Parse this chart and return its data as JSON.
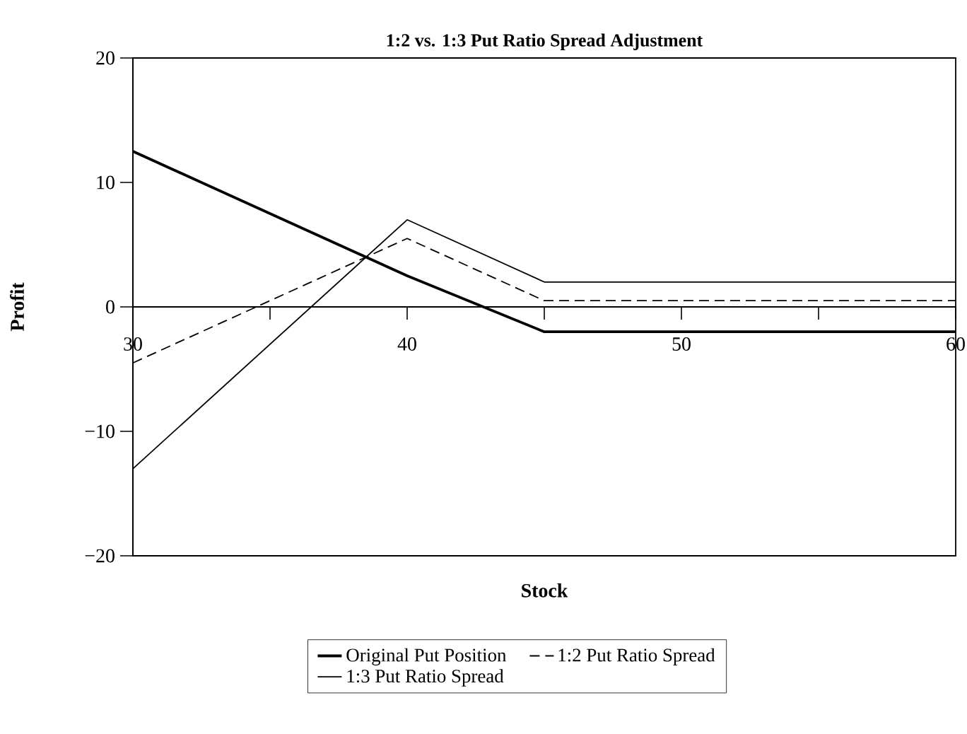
{
  "chart_data": {
    "type": "line",
    "title": "1:2 vs. 1:3 Put Ratio Spread Adjustment",
    "xlabel": "Stock",
    "ylabel": "Profit",
    "x": [
      30,
      40,
      45,
      60
    ],
    "series": [
      {
        "name": "Original Put Position",
        "color": "#000000",
        "line_style": "solid",
        "values": [
          12.5,
          2.5,
          -2,
          -2
        ]
      },
      {
        "name": "1:2 Put Ratio Spread",
        "color": "#000000",
        "line_style": "dashed",
        "values": [
          -4.5,
          5.5,
          0.5,
          0.5
        ]
      },
      {
        "name": "1:3 Put Ratio Spread",
        "color": "#000000",
        "line_style": "solid",
        "values": [
          -13,
          7,
          2,
          2
        ]
      }
    ],
    "xlim": [
      30,
      60
    ],
    "ylim": [
      -20,
      20
    ],
    "xticks": [
      30,
      {
        "value": 35,
        "label": null
      },
      40,
      {
        "value": 45,
        "label": null
      },
      50,
      {
        "value": 55,
        "label": null
      },
      60
    ],
    "yticks": [
      {
        "value": -20,
        "label": "−20"
      },
      {
        "value": -10,
        "label": "−10"
      },
      0,
      10,
      20
    ],
    "grid": false,
    "legend": "bottom",
    "marker": "none"
  }
}
